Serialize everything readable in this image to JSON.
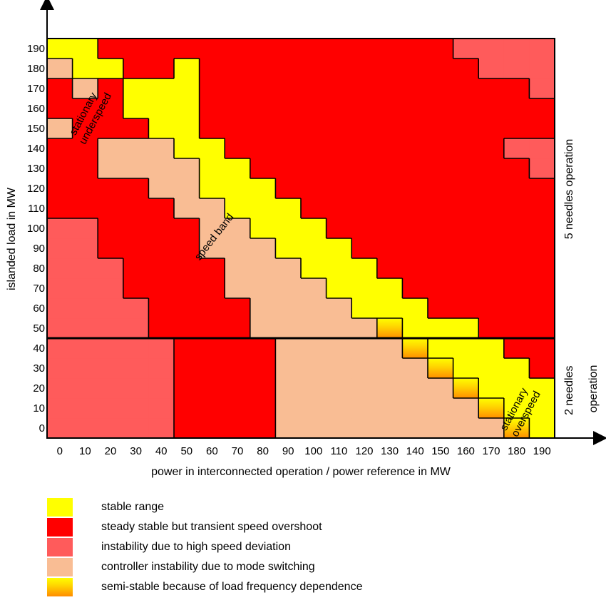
{
  "chart_data": {
    "type": "heatmap",
    "title": "",
    "xlabel": "power in interconnected operation / power reference in MW",
    "ylabel": "islanded load in MW",
    "x_ticks": [
      "0",
      "10",
      "20",
      "30",
      "40",
      "50",
      "60",
      "70",
      "80",
      "90",
      "100",
      "110",
      "120",
      "130",
      "140",
      "150",
      "160",
      "170",
      "180",
      "190"
    ],
    "y_ticks": [
      "0",
      "10",
      "20",
      "30",
      "40",
      "50",
      "60",
      "70",
      "80",
      "90",
      "100",
      "110",
      "120",
      "130",
      "140",
      "150",
      "160",
      "170",
      "180",
      "190"
    ],
    "right_labels": [
      "5 needles operation",
      "2 needles operation"
    ],
    "annotations": [
      "stationary underspeed",
      "speed band",
      "stationary overspeed"
    ],
    "grid": false,
    "colors": {
      "Y": "#ffff00",
      "R": "#ff0000",
      "P": "#ff5b5b",
      "O": "#f9bd94",
      "G": "#ffd100",
      "gradient_edge": "#ff8c00"
    },
    "legend": [
      {
        "key": "Y",
        "label": "stable range"
      },
      {
        "key": "R",
        "label": "steady stable but transient speed overshoot"
      },
      {
        "key": "P",
        "label": "instability due to high speed deviation"
      },
      {
        "key": "O",
        "label": "controller instability due to mode switching"
      },
      {
        "key": "G",
        "label": "semi-stable because of load frequency dependence"
      }
    ],
    "rows": [
      "PPPPPRRRROOOOOOOOOGY",
      "PPPPPRRRROOOOOOOOGYY",
      "PPPPPRRRROOOOOOOGYYY",
      "PPPPPRRRROOOOOOGYYYR",
      "PPPPPRRRROOOOOGYYYRR",
      "PPPPRRRROOOOOGYYYRRR",
      "PPPPRRRROOOOYYYRRRRR",
      "PPPRRRROOOOYYYRRRRRR",
      "PPPRRRROOOYYYRRRRRRR",
      "PPRRRROOOYYYRRRRRRRR",
      "PPRRRROOYYYRRRRRRRRR",
      "RRRRROOYYYRRRRRRRRRR",
      "RRRROOYYYRRRRRRRRRRR",
      "RROOOOYYRRRRRRRRRRRP",
      "RROOOYYRRRRRRRRRRRPP",
      "ORRRYYRRRRRRRRRRRRRR",
      "RRRYYYRRRRRRRRRRRRRR",
      "RORYYYRRRRRRRRRRRRRP",
      "OYYRRYRRRRRRRRRRRPPP",
      "YYRRRRRRRRRRRRRRPPPP"
    ]
  }
}
